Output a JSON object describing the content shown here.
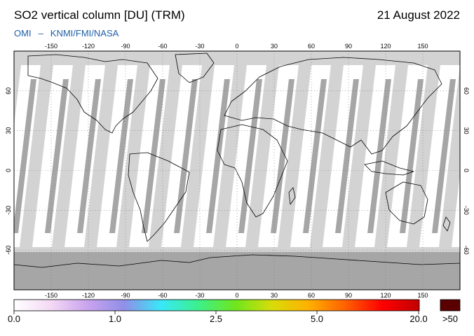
{
  "header": {
    "title": "SO2 vertical column [DU] (TRM)",
    "date": "21 August 2022",
    "source_left": "OMI",
    "source_sep": "–",
    "source_right": "KNMI/FMI/NASA"
  },
  "map": {
    "lon_ticks": [
      "-150",
      "-120",
      "-90",
      "-60",
      "-30",
      "0",
      "30",
      "60",
      "90",
      "120",
      "150"
    ],
    "lat_ticks": [
      "60",
      "30",
      "0",
      "-30",
      "-60"
    ],
    "colors": {
      "no_data": "#d3d3d3",
      "swath": "#ffffff",
      "daily_strip": "#a6a6a6",
      "antarctica": "#a6a6a6",
      "coastline": "#000000"
    }
  },
  "colorbar": {
    "labels": [
      "0.0",
      "1.0",
      "2.5",
      "5.0",
      "20.0",
      ">50"
    ],
    "overflow_color": "#5a0000",
    "gradient_colors": [
      "#ffffff",
      "#f4d9f4",
      "#c9a3ee",
      "#8f8fe8",
      "#38e8f8",
      "#3cf08c",
      "#6ee61e",
      "#d8dc0a",
      "#ffb000",
      "#ff6000",
      "#ff0000",
      "#c00000"
    ]
  }
}
